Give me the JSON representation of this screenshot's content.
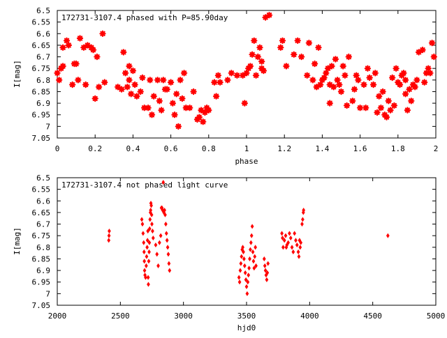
{
  "chart_data": [
    {
      "type": "scatter",
      "title": "172731-3107.4 phased with P=85.90day",
      "xlabel": "phase",
      "ylabel": "I[mag]",
      "xlim": [
        0,
        2
      ],
      "ylim": [
        7.05,
        6.5
      ],
      "y_inverted": true,
      "xticks": [
        "0",
        "0.2",
        "0.4",
        "0.6",
        "0.8",
        "1",
        "1.2",
        "1.4",
        "1.6",
        "1.8",
        "2"
      ],
      "yticks": [
        "6.5",
        "6.55",
        "6.6",
        "6.65",
        "6.7",
        "6.75",
        "6.8",
        "6.85",
        "6.9",
        "6.95",
        "7",
        "7.05"
      ],
      "marker_color": "#ff0000",
      "grid": false,
      "legend": "none",
      "points": [
        [
          0.0,
          6.77
        ],
        [
          0.01,
          6.8
        ],
        [
          0.02,
          6.75
        ],
        [
          0.03,
          6.74
        ],
        [
          0.03,
          6.66
        ],
        [
          0.05,
          6.63
        ],
        [
          0.06,
          6.65
        ],
        [
          0.08,
          6.82
        ],
        [
          0.09,
          6.73
        ],
        [
          0.1,
          6.73
        ],
        [
          0.11,
          6.8
        ],
        [
          0.12,
          6.62
        ],
        [
          0.14,
          6.66
        ],
        [
          0.15,
          6.82
        ],
        [
          0.16,
          6.65
        ],
        [
          0.18,
          6.66
        ],
        [
          0.19,
          6.67
        ],
        [
          0.2,
          6.88
        ],
        [
          0.21,
          6.7
        ],
        [
          0.22,
          6.83
        ],
        [
          0.24,
          6.6
        ],
        [
          0.25,
          6.81
        ],
        [
          0.32,
          6.83
        ],
        [
          0.34,
          6.84
        ],
        [
          0.35,
          6.68
        ],
        [
          0.36,
          6.77
        ],
        [
          0.37,
          6.83
        ],
        [
          0.38,
          6.74
        ],
        [
          0.38,
          6.8
        ],
        [
          0.39,
          6.86
        ],
        [
          0.4,
          6.76
        ],
        [
          0.41,
          6.82
        ],
        [
          0.42,
          6.87
        ],
        [
          0.44,
          6.85
        ],
        [
          0.45,
          6.79
        ],
        [
          0.46,
          6.92
        ],
        [
          0.48,
          6.92
        ],
        [
          0.49,
          6.8
        ],
        [
          0.5,
          6.95
        ],
        [
          0.51,
          6.87
        ],
        [
          0.53,
          6.8
        ],
        [
          0.54,
          6.89
        ],
        [
          0.55,
          6.93
        ],
        [
          0.56,
          6.8
        ],
        [
          0.57,
          6.84
        ],
        [
          0.58,
          6.84
        ],
        [
          0.6,
          6.81
        ],
        [
          0.61,
          6.9
        ],
        [
          0.62,
          6.95
        ],
        [
          0.63,
          6.86
        ],
        [
          0.64,
          7.0
        ],
        [
          0.65,
          6.8
        ],
        [
          0.66,
          6.88
        ],
        [
          0.67,
          6.77
        ],
        [
          0.68,
          6.92
        ],
        [
          0.7,
          6.92
        ],
        [
          0.72,
          6.85
        ],
        [
          0.74,
          6.97
        ],
        [
          0.75,
          6.96
        ],
        [
          0.76,
          6.93
        ],
        [
          0.77,
          6.98
        ],
        [
          0.78,
          6.94
        ],
        [
          0.79,
          6.92
        ],
        [
          0.8,
          6.93
        ],
        [
          0.83,
          6.81
        ],
        [
          0.84,
          6.87
        ],
        [
          0.85,
          6.78
        ],
        [
          0.86,
          6.81
        ],
        [
          0.9,
          6.8
        ],
        [
          0.92,
          6.77
        ],
        [
          0.95,
          6.78
        ],
        [
          0.98,
          6.78
        ],
        [
          0.99,
          6.9
        ],
        [
          1.0,
          6.77
        ],
        [
          1.01,
          6.75
        ],
        [
          1.02,
          6.74
        ],
        [
          1.03,
          6.69
        ],
        [
          1.04,
          6.63
        ],
        [
          1.05,
          6.78
        ],
        [
          1.06,
          6.7
        ],
        [
          1.07,
          6.66
        ],
        [
          1.08,
          6.72
        ],
        [
          1.08,
          6.75
        ],
        [
          1.09,
          6.76
        ],
        [
          1.1,
          6.53
        ],
        [
          1.12,
          6.52
        ],
        [
          1.18,
          6.66
        ],
        [
          1.19,
          6.63
        ],
        [
          1.21,
          6.74
        ],
        [
          1.25,
          6.69
        ],
        [
          1.27,
          6.63
        ],
        [
          1.29,
          6.7
        ],
        [
          1.32,
          6.78
        ],
        [
          1.33,
          6.64
        ],
        [
          1.35,
          6.8
        ],
        [
          1.36,
          6.73
        ],
        [
          1.37,
          6.83
        ],
        [
          1.38,
          6.66
        ],
        [
          1.39,
          6.82
        ],
        [
          1.4,
          6.8
        ],
        [
          1.41,
          6.79
        ],
        [
          1.42,
          6.77
        ],
        [
          1.43,
          6.75
        ],
        [
          1.44,
          6.82
        ],
        [
          1.44,
          6.9
        ],
        [
          1.45,
          6.74
        ],
        [
          1.46,
          6.83
        ],
        [
          1.47,
          6.71
        ],
        [
          1.48,
          6.8
        ],
        [
          1.49,
          6.82
        ],
        [
          1.5,
          6.85
        ],
        [
          1.51,
          6.74
        ],
        [
          1.52,
          6.78
        ],
        [
          1.53,
          6.91
        ],
        [
          1.54,
          6.7
        ],
        [
          1.56,
          6.89
        ],
        [
          1.57,
          6.84
        ],
        [
          1.58,
          6.78
        ],
        [
          1.59,
          6.8
        ],
        [
          1.6,
          6.92
        ],
        [
          1.62,
          6.82
        ],
        [
          1.63,
          6.92
        ],
        [
          1.64,
          6.75
        ],
        [
          1.65,
          6.79
        ],
        [
          1.67,
          6.82
        ],
        [
          1.68,
          6.77
        ],
        [
          1.69,
          6.94
        ],
        [
          1.7,
          6.87
        ],
        [
          1.71,
          6.92
        ],
        [
          1.72,
          6.85
        ],
        [
          1.73,
          6.95
        ],
        [
          1.74,
          6.96
        ],
        [
          1.75,
          6.89
        ],
        [
          1.76,
          6.93
        ],
        [
          1.77,
          6.79
        ],
        [
          1.78,
          6.91
        ],
        [
          1.79,
          6.75
        ],
        [
          1.8,
          6.81
        ],
        [
          1.81,
          6.82
        ],
        [
          1.82,
          6.78
        ],
        [
          1.83,
          6.77
        ],
        [
          1.84,
          6.8
        ],
        [
          1.84,
          6.86
        ],
        [
          1.85,
          6.93
        ],
        [
          1.86,
          6.84
        ],
        [
          1.87,
          6.89
        ],
        [
          1.88,
          6.82
        ],
        [
          1.89,
          6.83
        ],
        [
          1.9,
          6.8
        ],
        [
          1.91,
          6.68
        ],
        [
          1.93,
          6.67
        ],
        [
          1.94,
          6.81
        ],
        [
          1.95,
          6.77
        ],
        [
          1.96,
          6.75
        ],
        [
          1.97,
          6.77
        ],
        [
          1.98,
          6.64
        ],
        [
          1.99,
          6.7
        ]
      ]
    },
    {
      "type": "scatter",
      "title": "172731-3107.4 not phased light curve",
      "xlabel": "hjd0",
      "ylabel": "I[mag]",
      "xlim": [
        2000,
        5000
      ],
      "ylim": [
        7.05,
        6.5
      ],
      "y_inverted": true,
      "xticks": [
        "2000",
        "2500",
        "3000",
        "3500",
        "4000",
        "4500",
        "5000"
      ],
      "yticks": [
        "6.5",
        "6.55",
        "6.6",
        "6.65",
        "6.7",
        "6.75",
        "6.8",
        "6.85",
        "6.9",
        "6.95",
        "7",
        "7.05"
      ],
      "marker_color": "#ff0000",
      "grid": false,
      "legend": "none",
      "points": [
        [
          2408,
          6.77
        ],
        [
          2410,
          6.75
        ],
        [
          2412,
          6.73
        ],
        [
          2670,
          6.68
        ],
        [
          2675,
          6.7
        ],
        [
          2680,
          6.74
        ],
        [
          2685,
          6.78
        ],
        [
          2688,
          6.82
        ],
        [
          2690,
          6.86
        ],
        [
          2692,
          6.9
        ],
        [
          2695,
          6.92
        ],
        [
          2700,
          6.93
        ],
        [
          2705,
          6.88
        ],
        [
          2708,
          6.84
        ],
        [
          2712,
          6.8
        ],
        [
          2715,
          6.77
        ],
        [
          2718,
          6.73
        ],
        [
          2720,
          6.93
        ],
        [
          2722,
          6.96
        ],
        [
          2725,
          6.86
        ],
        [
          2728,
          6.82
        ],
        [
          2730,
          6.78
        ],
        [
          2732,
          6.72
        ],
        [
          2735,
          6.68
        ],
        [
          2738,
          6.65
        ],
        [
          2740,
          6.64
        ],
        [
          2742,
          6.61
        ],
        [
          2745,
          6.62
        ],
        [
          2748,
          6.66
        ],
        [
          2750,
          6.7
        ],
        [
          2755,
          6.73
        ],
        [
          2760,
          6.76
        ],
        [
          2780,
          6.79
        ],
        [
          2790,
          6.83
        ],
        [
          2800,
          6.88
        ],
        [
          2810,
          6.78
        ],
        [
          2820,
          6.75
        ],
        [
          2825,
          6.63
        ],
        [
          2830,
          6.63
        ],
        [
          2835,
          6.64
        ],
        [
          2840,
          6.52
        ],
        [
          2845,
          6.65
        ],
        [
          2850,
          6.64
        ],
        [
          2855,
          6.66
        ],
        [
          2860,
          6.7
        ],
        [
          2865,
          6.74
        ],
        [
          2870,
          6.77
        ],
        [
          2875,
          6.8
        ],
        [
          2880,
          6.83
        ],
        [
          2885,
          6.87
        ],
        [
          2890,
          6.9
        ],
        [
          3440,
          6.93
        ],
        [
          3445,
          6.95
        ],
        [
          3450,
          6.9
        ],
        [
          3455,
          6.87
        ],
        [
          3460,
          6.84
        ],
        [
          3465,
          6.81
        ],
        [
          3470,
          6.8
        ],
        [
          3475,
          6.82
        ],
        [
          3480,
          6.85
        ],
        [
          3485,
          6.88
        ],
        [
          3490,
          6.91
        ],
        [
          3495,
          6.94
        ],
        [
          3500,
          6.97
        ],
        [
          3505,
          7.0
        ],
        [
          3510,
          6.95
        ],
        [
          3515,
          6.92
        ],
        [
          3520,
          6.89
        ],
        [
          3525,
          6.85
        ],
        [
          3530,
          6.81
        ],
        [
          3535,
          6.78
        ],
        [
          3540,
          6.75
        ],
        [
          3545,
          6.71
        ],
        [
          3550,
          6.82
        ],
        [
          3555,
          6.86
        ],
        [
          3560,
          6.89
        ],
        [
          3565,
          6.84
        ],
        [
          3570,
          6.8
        ],
        [
          3575,
          6.88
        ],
        [
          3640,
          6.85
        ],
        [
          3645,
          6.88
        ],
        [
          3650,
          6.9
        ],
        [
          3655,
          6.92
        ],
        [
          3660,
          6.94
        ],
        [
          3665,
          6.91
        ],
        [
          3670,
          6.87
        ],
        [
          3780,
          6.74
        ],
        [
          3785,
          6.76
        ],
        [
          3790,
          6.8
        ],
        [
          3800,
          6.77
        ],
        [
          3810,
          6.75
        ],
        [
          3815,
          6.8
        ],
        [
          3820,
          6.79
        ],
        [
          3830,
          6.78
        ],
        [
          3840,
          6.74
        ],
        [
          3850,
          6.76
        ],
        [
          3860,
          6.8
        ],
        [
          3870,
          6.82
        ],
        [
          3880,
          6.74
        ],
        [
          3890,
          6.77
        ],
        [
          3900,
          6.79
        ],
        [
          3910,
          6.82
        ],
        [
          3915,
          6.84
        ],
        [
          3920,
          6.77
        ],
        [
          3925,
          6.8
        ],
        [
          3930,
          6.78
        ],
        [
          3940,
          6.7
        ],
        [
          3945,
          6.68
        ],
        [
          3950,
          6.65
        ],
        [
          3952,
          6.64
        ],
        [
          4620,
          6.75
        ]
      ]
    }
  ]
}
